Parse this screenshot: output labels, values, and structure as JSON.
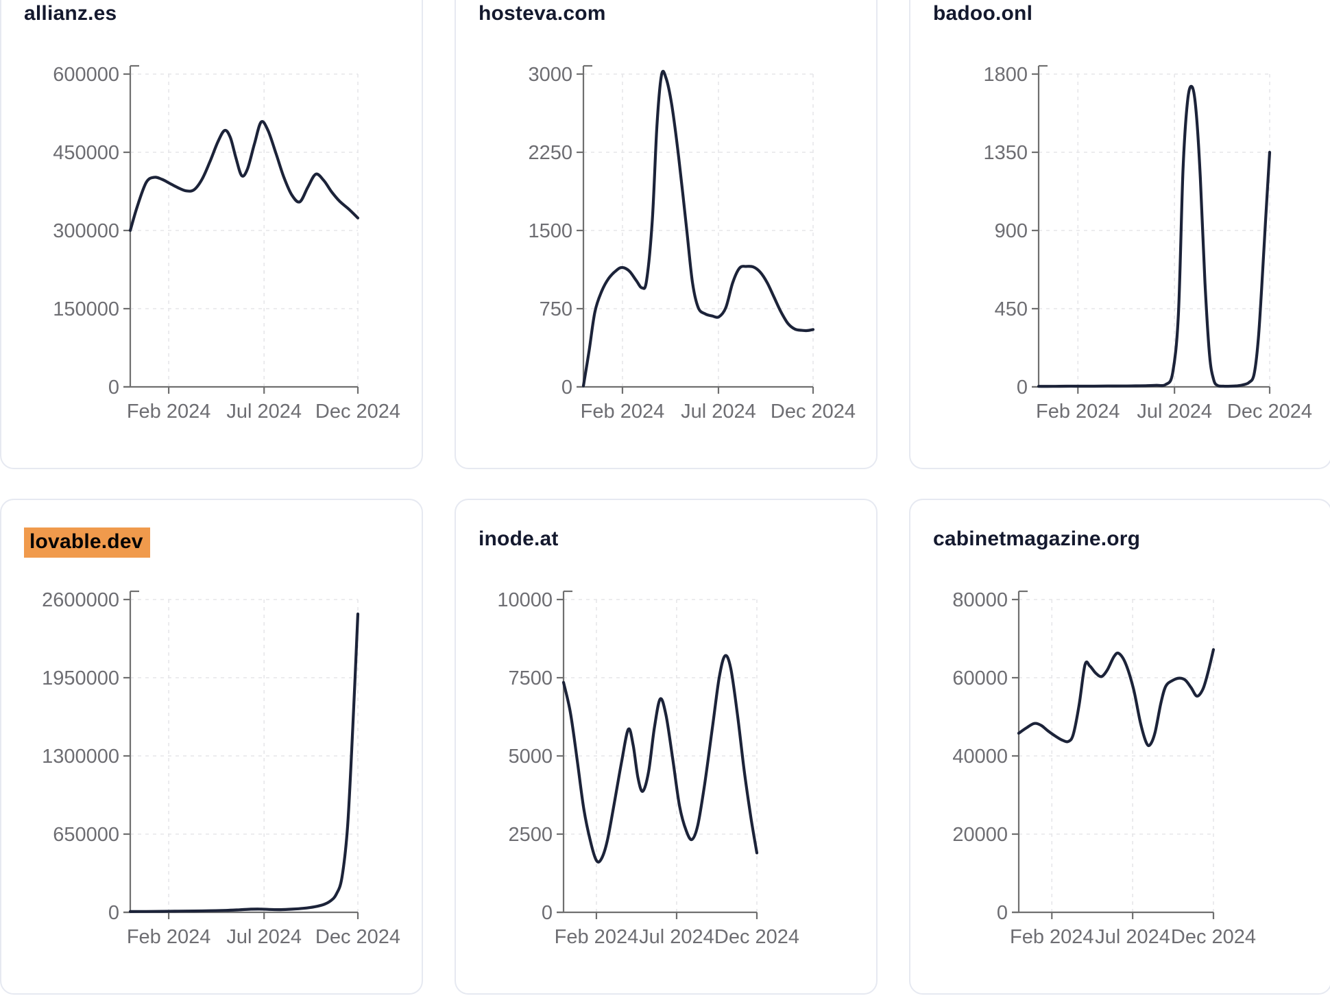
{
  "theme": {
    "line_color": "#1c2339",
    "axis_color": "#6f6f6f",
    "grid_color": "#e6e6e9",
    "tick_label_color": "#6d6d72",
    "title_color": "#14192e",
    "highlight_color": "#f09a4c",
    "card_border_color": "#e6e9f1",
    "background_color": "#ffffff"
  },
  "chart_data": [
    {
      "type": "line",
      "title": "allianz.es",
      "highlighted": false,
      "xlabel": "",
      "ylabel": "",
      "grid": true,
      "legend": "none",
      "ylim": [
        0,
        600000
      ],
      "y_ticks": [
        0,
        150000,
        300000,
        450000,
        600000
      ],
      "x_ticks": [
        {
          "label": "Feb 2024",
          "pos": 0.169
        },
        {
          "label": "Jul 2024",
          "pos": 0.588
        },
        {
          "label": "Dec 2024",
          "pos": 1.0
        }
      ],
      "points": [
        [
          0,
          300000
        ],
        [
          0.03,
          345000
        ],
        [
          0.07,
          392000
        ],
        [
          0.105,
          402000
        ],
        [
          0.14,
          398000
        ],
        [
          0.175,
          390000
        ],
        [
          0.21,
          382000
        ],
        [
          0.245,
          376000
        ],
        [
          0.28,
          378000
        ],
        [
          0.315,
          398000
        ],
        [
          0.35,
          432000
        ],
        [
          0.385,
          470000
        ],
        [
          0.415,
          492000
        ],
        [
          0.44,
          478000
        ],
        [
          0.465,
          438000
        ],
        [
          0.49,
          405000
        ],
        [
          0.515,
          418000
        ],
        [
          0.545,
          465000
        ],
        [
          0.575,
          508000
        ],
        [
          0.605,
          492000
        ],
        [
          0.64,
          448000
        ],
        [
          0.675,
          402000
        ],
        [
          0.71,
          368000
        ],
        [
          0.745,
          355000
        ],
        [
          0.78,
          383000
        ],
        [
          0.815,
          408000
        ],
        [
          0.85,
          396000
        ],
        [
          0.885,
          374000
        ],
        [
          0.92,
          356000
        ],
        [
          0.96,
          341000
        ],
        [
          1,
          324000
        ]
      ]
    },
    {
      "type": "line",
      "title": "hosteva.com",
      "highlighted": false,
      "xlabel": "",
      "ylabel": "",
      "grid": true,
      "legend": "none",
      "ylim": [
        0,
        3000
      ],
      "y_ticks": [
        0,
        750,
        1500,
        2250,
        3000
      ],
      "x_ticks": [
        {
          "label": "Feb 2024",
          "pos": 0.17
        },
        {
          "label": "Jul 2024",
          "pos": 0.588
        },
        {
          "label": "Dec 2024",
          "pos": 1.0
        }
      ],
      "points": [
        [
          0,
          10
        ],
        [
          0.025,
          350
        ],
        [
          0.05,
          720
        ],
        [
          0.08,
          920
        ],
        [
          0.11,
          1040
        ],
        [
          0.145,
          1120
        ],
        [
          0.17,
          1145
        ],
        [
          0.2,
          1110
        ],
        [
          0.23,
          1020
        ],
        [
          0.255,
          950
        ],
        [
          0.275,
          1020
        ],
        [
          0.3,
          1600
        ],
        [
          0.32,
          2500
        ],
        [
          0.34,
          2990
        ],
        [
          0.36,
          2960
        ],
        [
          0.385,
          2700
        ],
        [
          0.415,
          2200
        ],
        [
          0.45,
          1500
        ],
        [
          0.475,
          1000
        ],
        [
          0.5,
          760
        ],
        [
          0.53,
          700
        ],
        [
          0.56,
          680
        ],
        [
          0.59,
          672
        ],
        [
          0.62,
          760
        ],
        [
          0.65,
          1000
        ],
        [
          0.68,
          1140
        ],
        [
          0.71,
          1155
        ],
        [
          0.74,
          1150
        ],
        [
          0.77,
          1100
        ],
        [
          0.8,
          1000
        ],
        [
          0.83,
          860
        ],
        [
          0.86,
          720
        ],
        [
          0.89,
          610
        ],
        [
          0.92,
          555
        ],
        [
          0.95,
          542
        ],
        [
          0.975,
          540
        ],
        [
          1,
          550
        ]
      ]
    },
    {
      "type": "line",
      "title": "badoo.onl",
      "highlighted": false,
      "xlabel": "",
      "ylabel": "",
      "grid": true,
      "legend": "none",
      "ylim": [
        0,
        1800
      ],
      "y_ticks": [
        0,
        450,
        900,
        1350,
        1800
      ],
      "x_ticks": [
        {
          "label": "Feb 2024",
          "pos": 0.17
        },
        {
          "label": "Jul 2024",
          "pos": 0.588
        },
        {
          "label": "Dec 2024",
          "pos": 1.0
        }
      ],
      "points": [
        [
          0,
          3
        ],
        [
          0.06,
          3
        ],
        [
          0.12,
          4
        ],
        [
          0.18,
          4
        ],
        [
          0.24,
          4
        ],
        [
          0.3,
          5
        ],
        [
          0.36,
          5
        ],
        [
          0.42,
          6
        ],
        [
          0.47,
          7
        ],
        [
          0.51,
          9
        ],
        [
          0.55,
          14
        ],
        [
          0.58,
          80
        ],
        [
          0.605,
          420
        ],
        [
          0.625,
          1250
        ],
        [
          0.645,
          1650
        ],
        [
          0.665,
          1725
        ],
        [
          0.682,
          1580
        ],
        [
          0.7,
          1200
        ],
        [
          0.72,
          600
        ],
        [
          0.74,
          180
        ],
        [
          0.758,
          40
        ],
        [
          0.775,
          8
        ],
        [
          0.8,
          4
        ],
        [
          0.83,
          4
        ],
        [
          0.86,
          6
        ],
        [
          0.885,
          12
        ],
        [
          0.91,
          25
        ],
        [
          0.932,
          70
        ],
        [
          0.95,
          260
        ],
        [
          0.965,
          560
        ],
        [
          0.982,
          950
        ],
        [
          1,
          1350
        ]
      ]
    },
    {
      "type": "line",
      "title": "lovable.dev",
      "highlighted": true,
      "xlabel": "",
      "ylabel": "",
      "grid": true,
      "legend": "none",
      "ylim": [
        0,
        2600000
      ],
      "y_ticks": [
        0,
        650000,
        1300000,
        1950000,
        2600000
      ],
      "x_ticks": [
        {
          "label": "Feb 2024",
          "pos": 0.169
        },
        {
          "label": "Jul 2024",
          "pos": 0.588
        },
        {
          "label": "Dec 2024",
          "pos": 1.0
        }
      ],
      "points": [
        [
          0,
          6000
        ],
        [
          0.07,
          7000
        ],
        [
          0.14,
          8000
        ],
        [
          0.21,
          9500
        ],
        [
          0.28,
          11000
        ],
        [
          0.35,
          13000
        ],
        [
          0.42,
          16000
        ],
        [
          0.48,
          21000
        ],
        [
          0.53,
          26000
        ],
        [
          0.57,
          27000
        ],
        [
          0.61,
          24000
        ],
        [
          0.66,
          22000
        ],
        [
          0.71,
          26000
        ],
        [
          0.76,
          33000
        ],
        [
          0.81,
          46000
        ],
        [
          0.85,
          65000
        ],
        [
          0.88,
          95000
        ],
        [
          0.905,
          150000
        ],
        [
          0.93,
          290000
        ],
        [
          0.955,
          720000
        ],
        [
          0.978,
          1550000
        ],
        [
          1,
          2480000
        ]
      ]
    },
    {
      "type": "line",
      "title": "inode.at",
      "highlighted": false,
      "xlabel": "",
      "ylabel": "",
      "grid": true,
      "legend": "none",
      "ylim": [
        0,
        10000
      ],
      "y_ticks": [
        0,
        2500,
        5000,
        7500,
        10000
      ],
      "x_ticks": [
        {
          "label": "Feb 2024",
          "pos": 0.17
        },
        {
          "label": "Jul 2024",
          "pos": 0.585
        },
        {
          "label": "Dec 2024",
          "pos": 1.0
        }
      ],
      "points": [
        [
          0,
          7350
        ],
        [
          0.035,
          6400
        ],
        [
          0.07,
          4900
        ],
        [
          0.105,
          3300
        ],
        [
          0.14,
          2250
        ],
        [
          0.17,
          1660
        ],
        [
          0.195,
          1700
        ],
        [
          0.225,
          2250
        ],
        [
          0.26,
          3400
        ],
        [
          0.3,
          4800
        ],
        [
          0.335,
          5850
        ],
        [
          0.36,
          5350
        ],
        [
          0.385,
          4300
        ],
        [
          0.41,
          3870
        ],
        [
          0.44,
          4500
        ],
        [
          0.47,
          5900
        ],
        [
          0.5,
          6820
        ],
        [
          0.53,
          6300
        ],
        [
          0.565,
          4900
        ],
        [
          0.6,
          3400
        ],
        [
          0.635,
          2600
        ],
        [
          0.665,
          2330
        ],
        [
          0.695,
          2800
        ],
        [
          0.73,
          4100
        ],
        [
          0.77,
          5900
        ],
        [
          0.805,
          7500
        ],
        [
          0.835,
          8200
        ],
        [
          0.865,
          7800
        ],
        [
          0.9,
          6300
        ],
        [
          0.935,
          4500
        ],
        [
          0.97,
          3000
        ],
        [
          1,
          1900
        ]
      ]
    },
    {
      "type": "line",
      "title": "cabinetmagazine.org",
      "highlighted": false,
      "xlabel": "",
      "ylabel": "",
      "grid": true,
      "legend": "none",
      "ylim": [
        0,
        80000
      ],
      "y_ticks": [
        0,
        20000,
        40000,
        60000,
        80000
      ],
      "x_ticks": [
        {
          "label": "Feb 2024",
          "pos": 0.17
        },
        {
          "label": "Jul 2024",
          "pos": 0.585
        },
        {
          "label": "Dec 2024",
          "pos": 1.0
        }
      ],
      "points": [
        [
          0,
          45800
        ],
        [
          0.04,
          47200
        ],
        [
          0.08,
          48300
        ],
        [
          0.115,
          47800
        ],
        [
          0.15,
          46400
        ],
        [
          0.19,
          45000
        ],
        [
          0.225,
          44000
        ],
        [
          0.255,
          43700
        ],
        [
          0.28,
          45500
        ],
        [
          0.31,
          53000
        ],
        [
          0.34,
          63300
        ],
        [
          0.365,
          63000
        ],
        [
          0.395,
          61200
        ],
        [
          0.425,
          60300
        ],
        [
          0.455,
          62000
        ],
        [
          0.49,
          65500
        ],
        [
          0.515,
          66200
        ],
        [
          0.55,
          63500
        ],
        [
          0.59,
          57000
        ],
        [
          0.625,
          48500
        ],
        [
          0.655,
          43400
        ],
        [
          0.675,
          42900
        ],
        [
          0.7,
          46000
        ],
        [
          0.73,
          53500
        ],
        [
          0.755,
          57800
        ],
        [
          0.79,
          59300
        ],
        [
          0.825,
          59900
        ],
        [
          0.855,
          59400
        ],
        [
          0.885,
          57500
        ],
        [
          0.915,
          55300
        ],
        [
          0.945,
          57000
        ],
        [
          0.97,
          61000
        ],
        [
          1,
          67200
        ]
      ]
    }
  ]
}
